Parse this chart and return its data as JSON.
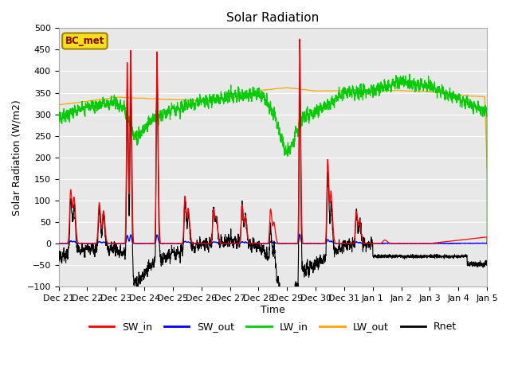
{
  "title": "Solar Radiation",
  "xlabel": "Time",
  "ylabel": "Solar Radiation (W/m2)",
  "ylim": [
    -100,
    500
  ],
  "background_color": "#e8e8e8",
  "legend_label": "BC_met",
  "series_colors": {
    "SW_in": "#ff0000",
    "SW_out": "#0000ff",
    "LW_in": "#00cc00",
    "LW_out": "#ffa500",
    "Rnet": "#000000"
  },
  "xtick_labels": [
    "Dec 21",
    "Dec 22",
    "Dec 23",
    "Dec 24",
    "Dec 25",
    "Dec 26",
    "Dec 27",
    "Dec 28",
    "Dec 29",
    "Dec 30",
    "Dec 31",
    "Jan 1",
    "Jan 2",
    "Jan 3",
    "Jan 4",
    "Jan 5"
  ],
  "ytick_vals": [
    -100,
    -50,
    0,
    50,
    100,
    150,
    200,
    250,
    300,
    350,
    400,
    450,
    500
  ],
  "n_points": 2880,
  "title_fontsize": 11,
  "label_fontsize": 9,
  "tick_fontsize": 8
}
